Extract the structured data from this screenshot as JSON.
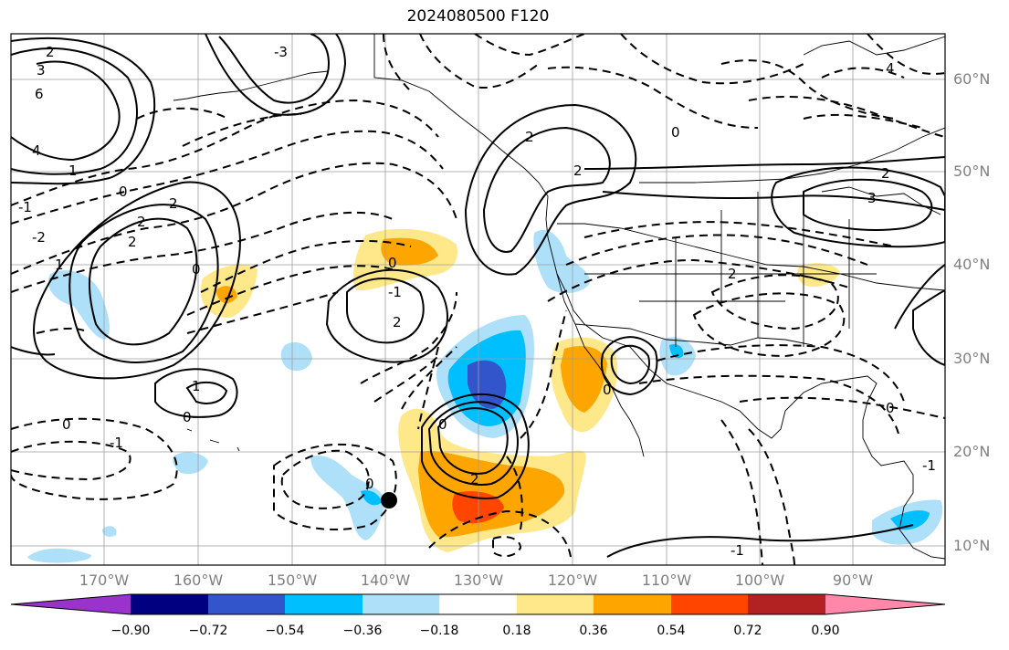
{
  "title": "2024080500 F120",
  "lat_labels": [
    "60°N",
    "50°N",
    "40°N",
    "30°N",
    "20°N",
    "10°N"
  ],
  "lon_labels": [
    "170°W",
    "160°W",
    "150°W",
    "140°W",
    "130°W",
    "120°W",
    "110°W",
    "100°W",
    "90°W"
  ],
  "colorbar": {
    "tick_labels": [
      "−0.90",
      "−0.72",
      "−0.54",
      "−0.36",
      "−0.18",
      "0.18",
      "0.36",
      "0.54",
      "0.72",
      "0.90"
    ],
    "colors": [
      "#9933cc",
      "#000080",
      "#3355cc",
      "#00bfff",
      "#aee0fa",
      "#ffffff",
      "#ffe88a",
      "#ffa500",
      "#ff4500",
      "#b22222",
      "#ff88aa"
    ]
  },
  "contour_labels": [
    "3",
    "6",
    "4",
    "2",
    "1",
    "0",
    "-1",
    "-2",
    "-3",
    "2",
    "0",
    "1",
    "2",
    "2",
    "0",
    "0",
    "0",
    "1",
    "2",
    "0",
    "-1",
    "-1",
    "0",
    "2",
    "2",
    "2",
    "3",
    "0",
    "4",
    "2",
    "2",
    "0",
    "0",
    "-1",
    "-1"
  ],
  "marker": "storm-center"
}
